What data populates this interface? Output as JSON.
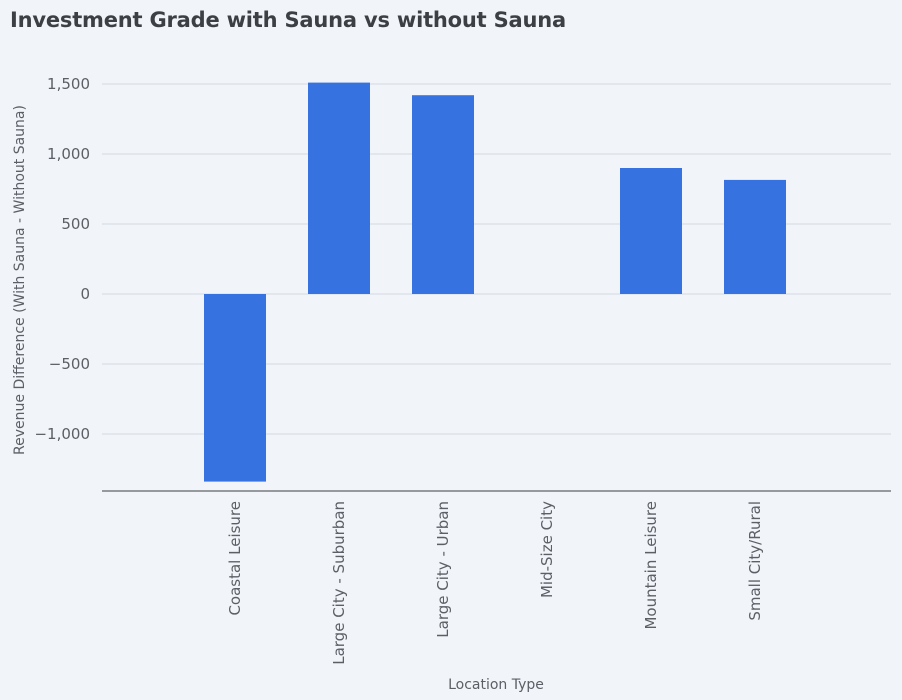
{
  "chart_data": {
    "type": "bar",
    "title": "Investment Grade with Sauna vs without Sauna",
    "xlabel": "Location Type",
    "ylabel": "Revenue Difference (With Sauna - Without Sauna)",
    "categories": [
      "Coastal Leisure",
      "Large City - Suburban",
      "Large City - Urban",
      "Mid-Size City",
      "Mountain Leisure",
      "Small City/Rural"
    ],
    "values": [
      -1340,
      1510,
      1420,
      0,
      900,
      815
    ],
    "ylim": [
      -1400,
      1500
    ],
    "yticks": [
      -1000,
      -500,
      0,
      500,
      1000,
      1500
    ],
    "ytick_labels": [
      "−1,000",
      "−500",
      "0",
      "500",
      "1,000",
      "1,500"
    ],
    "grid": true,
    "legend": "none",
    "colors": {
      "bar": "#3673e1",
      "grid": "#d3d8e0",
      "axis": "#5f6368",
      "background": "#f1f5fa"
    }
  }
}
